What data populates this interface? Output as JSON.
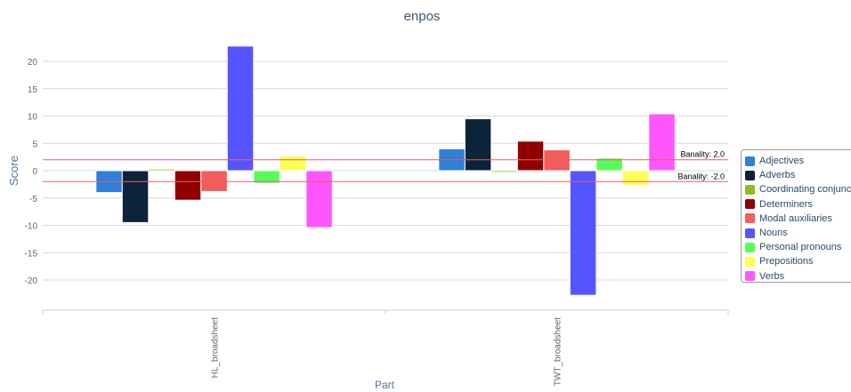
{
  "chart_data": {
    "type": "bar",
    "title": "enpos",
    "xlabel": "Part",
    "ylabel": "Score",
    "categories": [
      "HL_broadsheet",
      "TWT_broadsheet"
    ],
    "ylim": [
      -25,
      25
    ],
    "yticks": [
      -20,
      -15,
      -10,
      -5,
      0,
      5,
      10,
      15,
      20
    ],
    "grid": true,
    "legend_position": "right",
    "series": [
      {
        "name": "Adjectives",
        "color": "#2f7ed8",
        "values": [
          -4.0,
          4.0
        ]
      },
      {
        "name": "Adverbs",
        "color": "#0d233a",
        "values": [
          -9.5,
          9.5
        ]
      },
      {
        "name": "Coordinating conjunctions",
        "color": "#8bbc21",
        "values": [
          0.3,
          -0.3
        ]
      },
      {
        "name": "Determiners",
        "color": "#910000",
        "values": [
          -5.4,
          5.4
        ]
      },
      {
        "name": "Modal auxiliaries",
        "color": "#f45b5b",
        "values": [
          -3.8,
          3.8
        ]
      },
      {
        "name": "Nouns",
        "color": "#5555ff",
        "values": [
          22.8,
          -22.8
        ]
      },
      {
        "name": "Personal pronouns",
        "color": "#55ff55",
        "values": [
          -2.3,
          2.3
        ]
      },
      {
        "name": "Prepositions",
        "color": "#ffff55",
        "values": [
          2.7,
          -2.7
        ]
      },
      {
        "name": "Verbs",
        "color": "#ff55ff",
        "values": [
          -10.4,
          10.4
        ]
      }
    ],
    "plot_lines": [
      {
        "value": 2.0,
        "label": "Banality: 2.0",
        "color": "#e46161"
      },
      {
        "value": -2.0,
        "label": "Banality: -2.0",
        "color": "#e46161"
      }
    ]
  }
}
